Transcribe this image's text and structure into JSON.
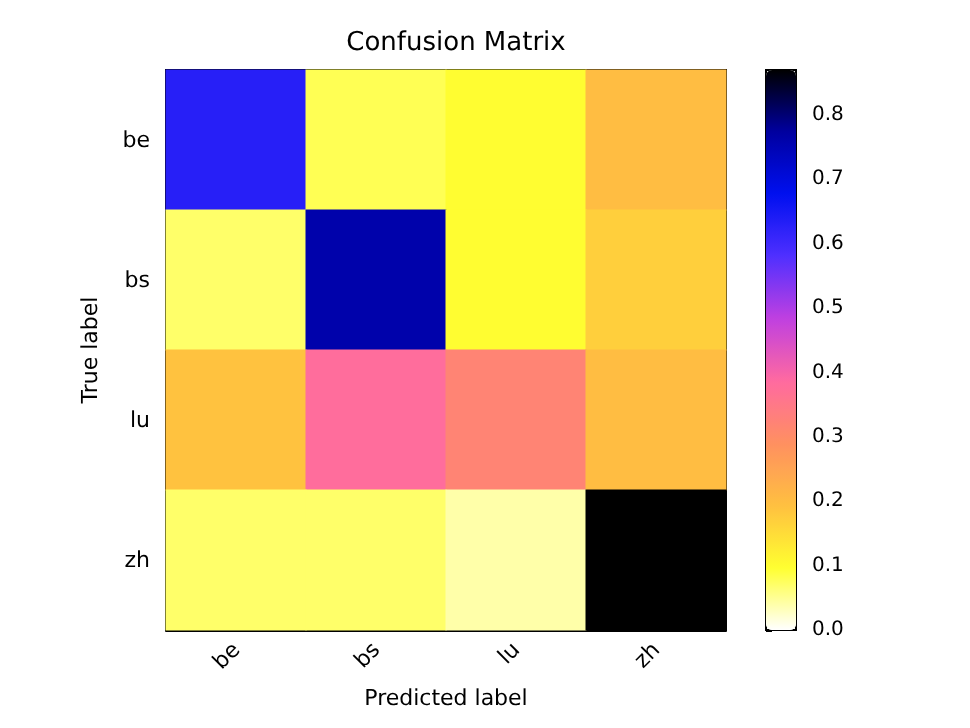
{
  "chart_data": {
    "type": "heatmap",
    "title": "Confusion Matrix",
    "xlabel": "Predicted label",
    "ylabel": "True label",
    "categories": [
      "be",
      "bs",
      "lu",
      "zh"
    ],
    "y_categories": [
      "be",
      "bs",
      "lu",
      "zh"
    ],
    "cells": [
      [
        0.63,
        0.08,
        0.1,
        0.2
      ],
      [
        0.07,
        0.76,
        0.1,
        0.17
      ],
      [
        0.19,
        0.38,
        0.32,
        0.2
      ],
      [
        0.07,
        0.07,
        0.04,
        0.87
      ]
    ],
    "clim": [
      0,
      0.87
    ],
    "cticks": [
      {
        "value": 0,
        "label": "0.0"
      },
      0.1,
      0.2,
      0.3,
      0.4,
      0.5,
      0.6,
      0.7,
      0.8
    ],
    "colors": [
      "#ffffff",
      "#ffff30",
      "#ffc040",
      "#ff9060",
      "#ff6aa0",
      "#c040e0",
      "#5030ff",
      "#0010f0",
      "#0000a0",
      "#000000"
    ]
  }
}
